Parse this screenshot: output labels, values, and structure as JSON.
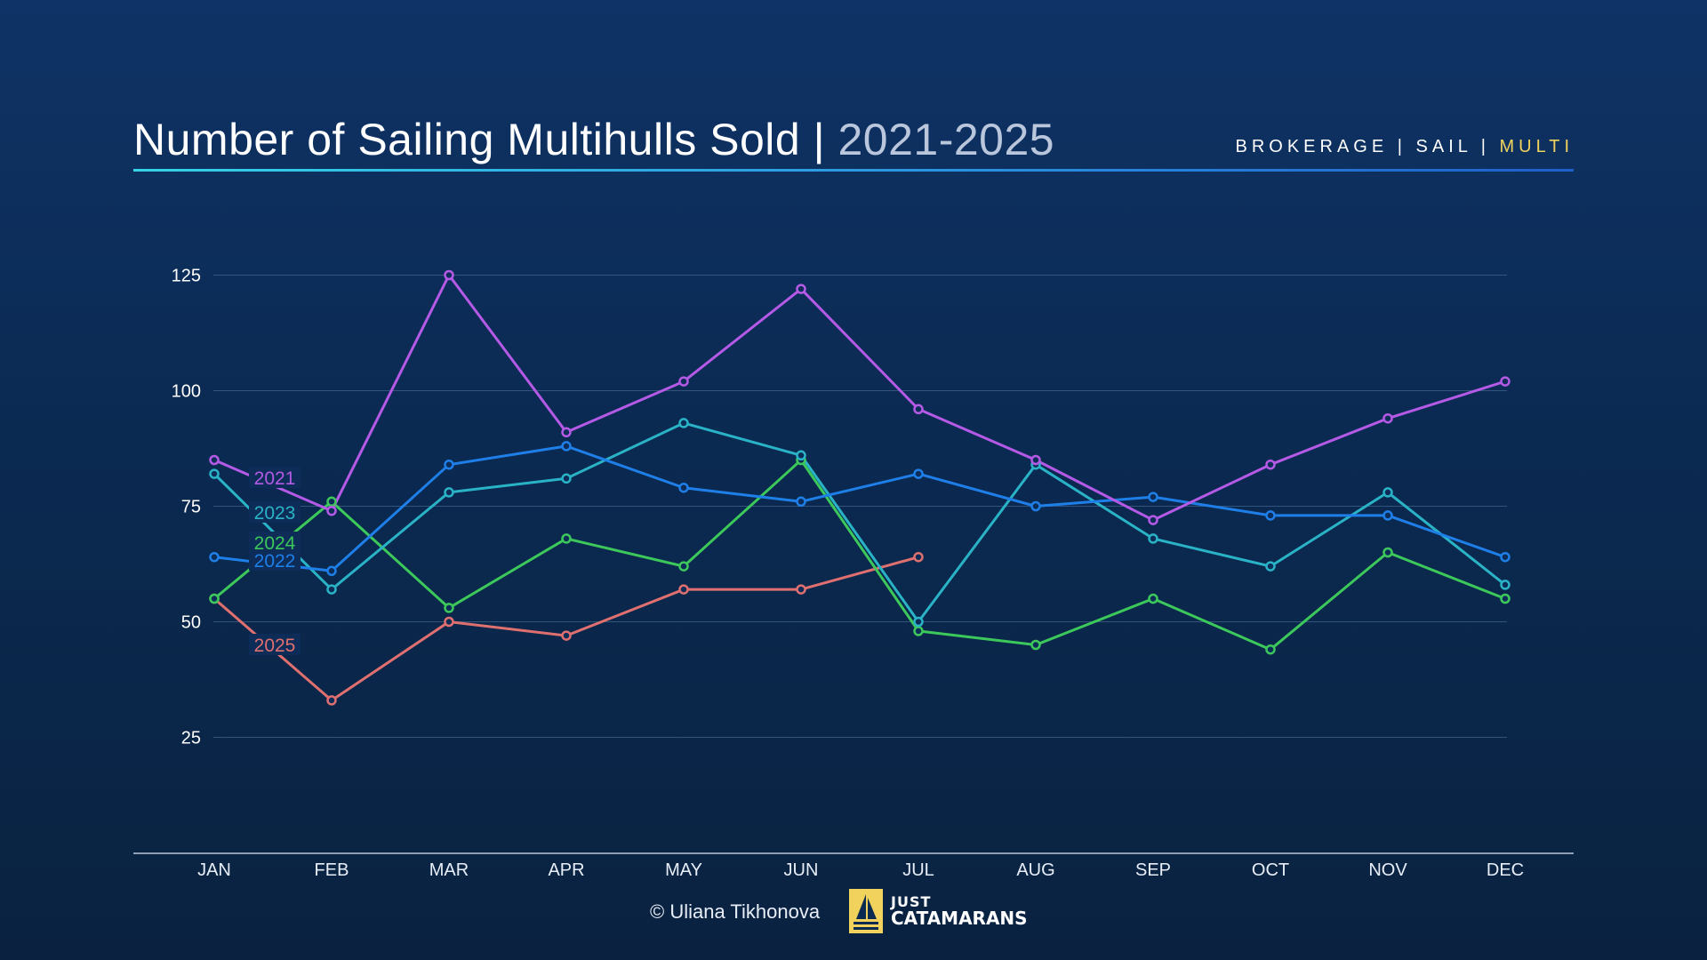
{
  "header": {
    "title": "Number of Sailing Multihulls Sold",
    "separator": "|",
    "years": "2021-2025",
    "tags": [
      "BROKERAGE",
      "SAIL",
      "MULTI"
    ],
    "tag_separator": "|",
    "active_tag_color": "#f0d25c"
  },
  "footer": {
    "copyright": "© Uliana Tikhonova",
    "logo_line1": "JUST",
    "logo_line2": "CATAMARANS",
    "logo_icon": "sailboat-icon"
  },
  "chart_data": {
    "type": "line",
    "categories": [
      "JAN",
      "FEB",
      "MAR",
      "APR",
      "MAY",
      "JUN",
      "JUL",
      "AUG",
      "SEP",
      "OCT",
      "NOV",
      "DEC"
    ],
    "yticks": [
      25,
      50,
      75,
      100,
      125
    ],
    "ylim": [
      0,
      125
    ],
    "grid": true,
    "legend": "inline labels at left",
    "series": [
      {
        "name": "2021",
        "color": "#b45ae6",
        "values": [
          85,
          74,
          125,
          91,
          102,
          122,
          96,
          85,
          72,
          84,
          94,
          102
        ]
      },
      {
        "name": "2022",
        "color": "#1f7fe8",
        "values": [
          64,
          61,
          84,
          88,
          79,
          76,
          82,
          75,
          77,
          73,
          73,
          64
        ]
      },
      {
        "name": "2023",
        "color": "#2ab3c6",
        "values": [
          82,
          57,
          78,
          81,
          93,
          86,
          50,
          84,
          68,
          62,
          78,
          58
        ]
      },
      {
        "name": "2024",
        "color": "#3cc85a",
        "values": [
          55,
          76,
          53,
          68,
          62,
          85,
          48,
          45,
          55,
          44,
          65,
          55
        ]
      },
      {
        "name": "2025",
        "color": "#e07070",
        "values": [
          55,
          33,
          50,
          47,
          57,
          57,
          64,
          null,
          null,
          null,
          null,
          null
        ]
      }
    ]
  }
}
